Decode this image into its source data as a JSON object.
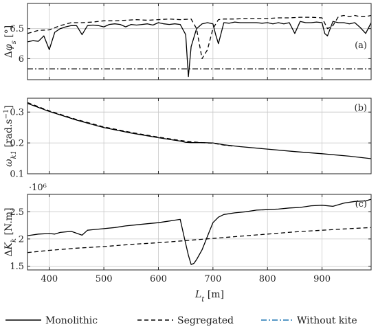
{
  "chart_data": [
    {
      "type": "line",
      "panel_label": "(a)",
      "ylabel": "Δφ_s [°]",
      "x_ticks": [
        400,
        500,
        600,
        700,
        800,
        900
      ],
      "y_ticks": [
        6,
        6.5
      ],
      "xlim": [
        360,
        990
      ],
      "ylim": [
        5.65,
        6.92
      ],
      "grid": true,
      "series": [
        {
          "name": "Monolithic",
          "style": "solid",
          "color": "#000000",
          "x": [
            360,
            370,
            380,
            390,
            400,
            410,
            420,
            430,
            440,
            450,
            460,
            470,
            480,
            490,
            500,
            510,
            520,
            530,
            540,
            550,
            560,
            570,
            580,
            590,
            600,
            610,
            620,
            630,
            640,
            650,
            655,
            660,
            670,
            680,
            690,
            700,
            705,
            710,
            720,
            730,
            740,
            750,
            760,
            770,
            780,
            790,
            800,
            810,
            820,
            830,
            840,
            850,
            860,
            870,
            880,
            890,
            900,
            905,
            910,
            920,
            930,
            940,
            950,
            960,
            970,
            980,
            990
          ],
          "y": [
            6.28,
            6.3,
            6.29,
            6.38,
            6.15,
            6.44,
            6.5,
            6.53,
            6.55,
            6.55,
            6.4,
            6.55,
            6.56,
            6.55,
            6.53,
            6.57,
            6.58,
            6.57,
            6.53,
            6.57,
            6.56,
            6.57,
            6.58,
            6.56,
            6.6,
            6.58,
            6.57,
            6.58,
            6.57,
            6.4,
            5.7,
            6.2,
            6.5,
            6.58,
            6.6,
            6.58,
            6.4,
            6.25,
            6.6,
            6.59,
            6.61,
            6.6,
            6.6,
            6.6,
            6.6,
            6.59,
            6.6,
            6.58,
            6.6,
            6.58,
            6.6,
            6.42,
            6.62,
            6.6,
            6.6,
            6.61,
            6.6,
            6.42,
            6.38,
            6.62,
            6.6,
            6.6,
            6.58,
            6.6,
            6.52,
            6.42,
            6.6
          ]
        },
        {
          "name": "Segregated",
          "style": "dashed",
          "color": "#000000",
          "x": [
            360,
            380,
            400,
            420,
            440,
            460,
            480,
            500,
            520,
            540,
            560,
            580,
            600,
            620,
            640,
            660,
            670,
            680,
            690,
            700,
            710,
            720,
            740,
            760,
            780,
            800,
            820,
            840,
            860,
            880,
            900,
            910,
            920,
            930,
            940,
            950,
            960,
            970,
            980,
            990
          ],
          "y": [
            6.42,
            6.47,
            6.48,
            6.55,
            6.6,
            6.6,
            6.61,
            6.63,
            6.63,
            6.64,
            6.65,
            6.64,
            6.65,
            6.66,
            6.65,
            6.66,
            6.5,
            6.0,
            6.15,
            6.5,
            6.65,
            6.66,
            6.66,
            6.67,
            6.67,
            6.67,
            6.68,
            6.68,
            6.69,
            6.69,
            6.68,
            6.5,
            6.55,
            6.7,
            6.72,
            6.7,
            6.72,
            6.7,
            6.7,
            6.72
          ]
        },
        {
          "name": "Without kite",
          "style": "dashdot",
          "color": "#000000",
          "x": [
            360,
            990
          ],
          "y": [
            5.83,
            5.83
          ]
        }
      ]
    },
    {
      "type": "line",
      "panel_label": "(b)",
      "ylabel": "ω_k1 [rad.s⁻¹]",
      "x_ticks": [
        400,
        500,
        600,
        700,
        800,
        900
      ],
      "y_ticks": [
        0.1,
        0.2,
        0.3
      ],
      "xlim": [
        360,
        990
      ],
      "ylim": [
        0.1,
        0.345
      ],
      "grid": true,
      "series": [
        {
          "name": "Monolithic",
          "style": "solid",
          "color": "#000000",
          "x": [
            360,
            400,
            450,
            500,
            550,
            600,
            640,
            650,
            660,
            680,
            700,
            710,
            720,
            750,
            800,
            850,
            900,
            950,
            990
          ],
          "y": [
            0.328,
            0.302,
            0.274,
            0.25,
            0.232,
            0.217,
            0.206,
            0.202,
            0.201,
            0.201,
            0.2,
            0.197,
            0.194,
            0.188,
            0.18,
            0.172,
            0.165,
            0.157,
            0.149
          ]
        },
        {
          "name": "Segregated",
          "style": "dashed",
          "color": "#000000",
          "x": [
            360,
            400,
            450,
            500,
            550,
            600,
            640,
            660,
            680,
            700,
            710,
            720,
            740
          ],
          "y": [
            0.331,
            0.304,
            0.276,
            0.252,
            0.234,
            0.219,
            0.208,
            0.204,
            0.201,
            0.199,
            0.196,
            0.193,
            0.189
          ]
        }
      ]
    },
    {
      "type": "line",
      "panel_label": "(c)",
      "ylabel": "ΔK_k [N.m]",
      "scale_label": "·10⁶",
      "x_ticks": [
        400,
        500,
        600,
        700,
        800,
        900
      ],
      "y_ticks": [
        1.5,
        2,
        2.5
      ],
      "xlim": [
        360,
        990
      ],
      "ylim": [
        1.43,
        2.82
      ],
      "grid": true,
      "series": [
        {
          "name": "Monolithic",
          "style": "solid",
          "color": "#000000",
          "x": [
            360,
            380,
            400,
            410,
            420,
            440,
            460,
            470,
            480,
            500,
            520,
            540,
            560,
            580,
            600,
            620,
            640,
            648,
            655,
            660,
            665,
            670,
            680,
            690,
            700,
            710,
            720,
            740,
            760,
            780,
            800,
            820,
            840,
            860,
            880,
            900,
            920,
            940,
            960,
            980,
            990
          ],
          "y": [
            2.06,
            2.09,
            2.1,
            2.09,
            2.12,
            2.14,
            2.07,
            2.16,
            2.17,
            2.19,
            2.21,
            2.24,
            2.26,
            2.28,
            2.3,
            2.33,
            2.36,
            2.0,
            1.7,
            1.53,
            1.55,
            1.62,
            1.8,
            2.05,
            2.3,
            2.4,
            2.45,
            2.48,
            2.5,
            2.53,
            2.54,
            2.55,
            2.57,
            2.58,
            2.61,
            2.62,
            2.6,
            2.66,
            2.69,
            2.7,
            2.73
          ]
        },
        {
          "name": "Segregated",
          "style": "dashed",
          "color": "#000000",
          "x": [
            360,
            400,
            450,
            500,
            550,
            600,
            650,
            700,
            750,
            800,
            850,
            900,
            950,
            990
          ],
          "y": [
            1.75,
            1.79,
            1.83,
            1.86,
            1.9,
            1.93,
            1.97,
            2.01,
            2.05,
            2.09,
            2.13,
            2.16,
            2.19,
            2.21
          ]
        }
      ]
    }
  ],
  "xlabel": "L_t [m]",
  "legend": [
    {
      "label": "Monolithic",
      "style": "solid",
      "color": "#000000"
    },
    {
      "label": "Segregated",
      "style": "dashed",
      "color": "#000000"
    },
    {
      "label": "Without kite",
      "style": "dashdot",
      "color": "#1f77b4"
    }
  ]
}
